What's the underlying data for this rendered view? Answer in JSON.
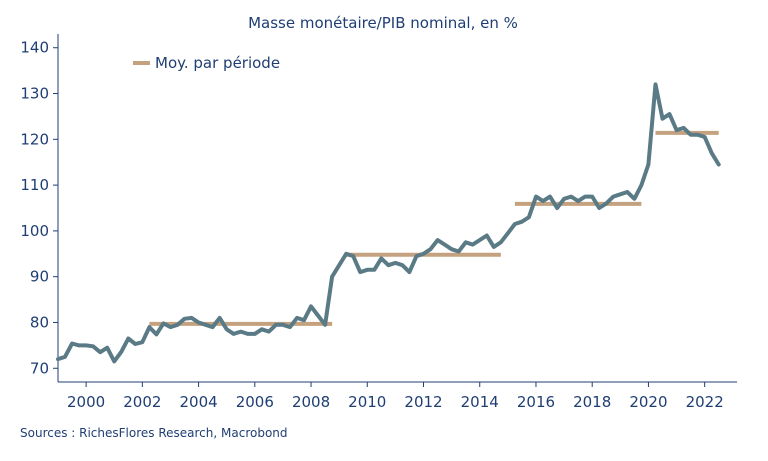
{
  "chart_data": {
    "type": "line",
    "title": "Masse monétaire/PIB nominal, en %",
    "ylim": [
      67,
      143
    ],
    "y_ticks": [
      70,
      80,
      90,
      100,
      110,
      120,
      130,
      140
    ],
    "x_ticks": [
      2000,
      2002,
      2004,
      2006,
      2008,
      2010,
      2012,
      2014,
      2016,
      2018,
      2020,
      2022
    ],
    "grid": false,
    "legend_position": "top-left",
    "series": [
      {
        "name": "",
        "color": "#5a7a86",
        "x": [
          1999.0,
          1999.25,
          1999.5,
          1999.75,
          2000.0,
          2000.25,
          2000.5,
          2000.75,
          2001.0,
          2001.25,
          2001.5,
          2001.75,
          2002.0,
          2002.25,
          2002.5,
          2002.75,
          2003.0,
          2003.25,
          2003.5,
          2003.75,
          2004.0,
          2004.25,
          2004.5,
          2004.75,
          2005.0,
          2005.25,
          2005.5,
          2005.75,
          2006.0,
          2006.25,
          2006.5,
          2006.75,
          2007.0,
          2007.25,
          2007.5,
          2007.75,
          2008.0,
          2008.25,
          2008.5,
          2008.75,
          2009.0,
          2009.25,
          2009.5,
          2009.75,
          2010.0,
          2010.25,
          2010.5,
          2010.75,
          2011.0,
          2011.25,
          2011.5,
          2011.75,
          2012.0,
          2012.25,
          2012.5,
          2012.75,
          2013.0,
          2013.25,
          2013.5,
          2013.75,
          2014.0,
          2014.25,
          2014.5,
          2014.75,
          2015.0,
          2015.25,
          2015.5,
          2015.75,
          2016.0,
          2016.25,
          2016.5,
          2016.75,
          2017.0,
          2017.25,
          2017.5,
          2017.75,
          2018.0,
          2018.25,
          2018.5,
          2018.75,
          2019.0,
          2019.25,
          2019.5,
          2019.75,
          2020.0,
          2020.25,
          2020.5,
          2020.75,
          2021.0,
          2021.25,
          2021.5,
          2021.75,
          2022.0,
          2022.25,
          2022.5
        ],
        "values": [
          72.0,
          72.5,
          75.4,
          75.0,
          75.0,
          74.8,
          73.5,
          74.5,
          71.5,
          73.6,
          76.5,
          75.3,
          75.7,
          79.0,
          77.4,
          79.8,
          79.0,
          79.5,
          80.8,
          81.0,
          80.0,
          79.5,
          79.0,
          81.0,
          78.5,
          77.5,
          78.0,
          77.5,
          77.5,
          78.5,
          78.0,
          79.5,
          79.5,
          79.0,
          81.0,
          80.5,
          83.5,
          81.5,
          79.5,
          90.0,
          92.5,
          95.0,
          94.5,
          91.0,
          91.5,
          91.5,
          94.0,
          92.5,
          93.0,
          92.5,
          91.0,
          94.5,
          95.0,
          96.0,
          98.0,
          97.0,
          96.0,
          95.5,
          97.5,
          97.0,
          98.0,
          99.0,
          96.5,
          97.5,
          99.5,
          101.5,
          102.0,
          103.0,
          107.5,
          106.5,
          107.5,
          105.0,
          107.0,
          107.5,
          106.5,
          107.5,
          107.5,
          105.0,
          106.0,
          107.5,
          108.0,
          108.5,
          107.0,
          110.0,
          114.5,
          132.0,
          124.5,
          125.5,
          122.0,
          122.5,
          121.0,
          121.0,
          120.5,
          117.0,
          114.5
        ]
      }
    ],
    "period_averages": {
      "name": "Moy. par période",
      "color": "#c4a27f",
      "segments": [
        {
          "x": [
            2002.25,
            2008.75
          ],
          "value": 79.7
        },
        {
          "x": [
            2009.25,
            2014.75
          ],
          "value": 94.8
        },
        {
          "x": [
            2015.25,
            2019.75
          ],
          "value": 105.9
        },
        {
          "x": [
            2020.25,
            2022.5
          ],
          "value": 121.4
        }
      ]
    },
    "source": "Sources : RichesFlores Research, Macrobond"
  }
}
